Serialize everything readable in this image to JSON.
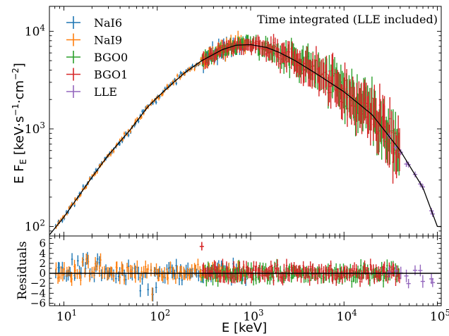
{
  "chart_data": [
    {
      "type": "scatter",
      "panel": "spectrum",
      "annotation": "Time integrated (LLE included)",
      "xlabel": "E [keV]",
      "ylabel": "E F_E  [keV·s⁻¹·cm⁻²]",
      "ylabel_parts": {
        "a": "E F",
        "sub": "E",
        "b": "  [keV·s",
        "sup1": "−1",
        "c": "·cm",
        "sup2": "−2",
        "d": "]"
      },
      "x_scale": "log",
      "y_scale": "log",
      "xlim": [
        7,
        110000
      ],
      "ylim": [
        80,
        18000
      ],
      "ytick_labels": [
        {
          "value": 100,
          "base": "10",
          "exp": "2"
        },
        {
          "value": 1000,
          "base": "10",
          "exp": "3"
        },
        {
          "value": 10000,
          "base": "10",
          "exp": "4"
        }
      ],
      "legend_position": "top-left",
      "series": [
        {
          "name": "NaI6",
          "color": "#1f77b4",
          "x_range": [
            8,
            900
          ]
        },
        {
          "name": "NaI9",
          "color": "#ff7f0e",
          "x_range": [
            8,
            900
          ]
        },
        {
          "name": "BGO0",
          "color": "#2ca02c",
          "x_range": [
            300,
            40000
          ]
        },
        {
          "name": "BGO1",
          "color": "#d62728",
          "x_range": [
            300,
            40000
          ]
        },
        {
          "name": "LLE",
          "color": "#9467bd",
          "x_range": [
            30000,
            100000
          ]
        }
      ],
      "model_curve": {
        "color": "#000000",
        "points": [
          [
            7,
            82
          ],
          [
            10,
            125
          ],
          [
            20,
            320
          ],
          [
            30,
            540
          ],
          [
            50,
            950
          ],
          [
            80,
            1700
          ],
          [
            100,
            2100
          ],
          [
            150,
            3000
          ],
          [
            200,
            3800
          ],
          [
            300,
            5000
          ],
          [
            500,
            6500
          ],
          [
            700,
            7200
          ],
          [
            1000,
            7300
          ],
          [
            1500,
            6800
          ],
          [
            2000,
            6100
          ],
          [
            3000,
            5000
          ],
          [
            5000,
            3700
          ],
          [
            10000,
            2400
          ],
          [
            20000,
            1400
          ],
          [
            40000,
            600
          ],
          [
            70000,
            250
          ],
          [
            100000,
            100
          ]
        ]
      }
    },
    {
      "type": "scatter",
      "panel": "residuals",
      "ylabel": "Residuals",
      "xlabel": "E [keV]",
      "x_scale": "log",
      "xlim": [
        7,
        110000
      ],
      "ylim": [
        -6.5,
        7.5
      ],
      "ytick_labels": [
        {
          "value": 6,
          "label": "6"
        },
        {
          "value": 4,
          "label": "4"
        },
        {
          "value": 2,
          "label": "2"
        },
        {
          "value": 0,
          "label": "0"
        },
        {
          "value": -2,
          "label": "−2"
        },
        {
          "value": -4,
          "label": "−4"
        },
        {
          "value": -6,
          "label": "−6"
        }
      ],
      "xtick_labels": [
        {
          "value": 10,
          "base": "10",
          "exp": "1"
        },
        {
          "value": 100,
          "base": "10",
          "exp": "2"
        },
        {
          "value": 1000,
          "base": "10",
          "exp": "3"
        },
        {
          "value": 10000,
          "base": "10",
          "exp": "4"
        },
        {
          "value": 100000,
          "base": "10",
          "exp": "5"
        }
      ],
      "zero_line": 0
    }
  ]
}
